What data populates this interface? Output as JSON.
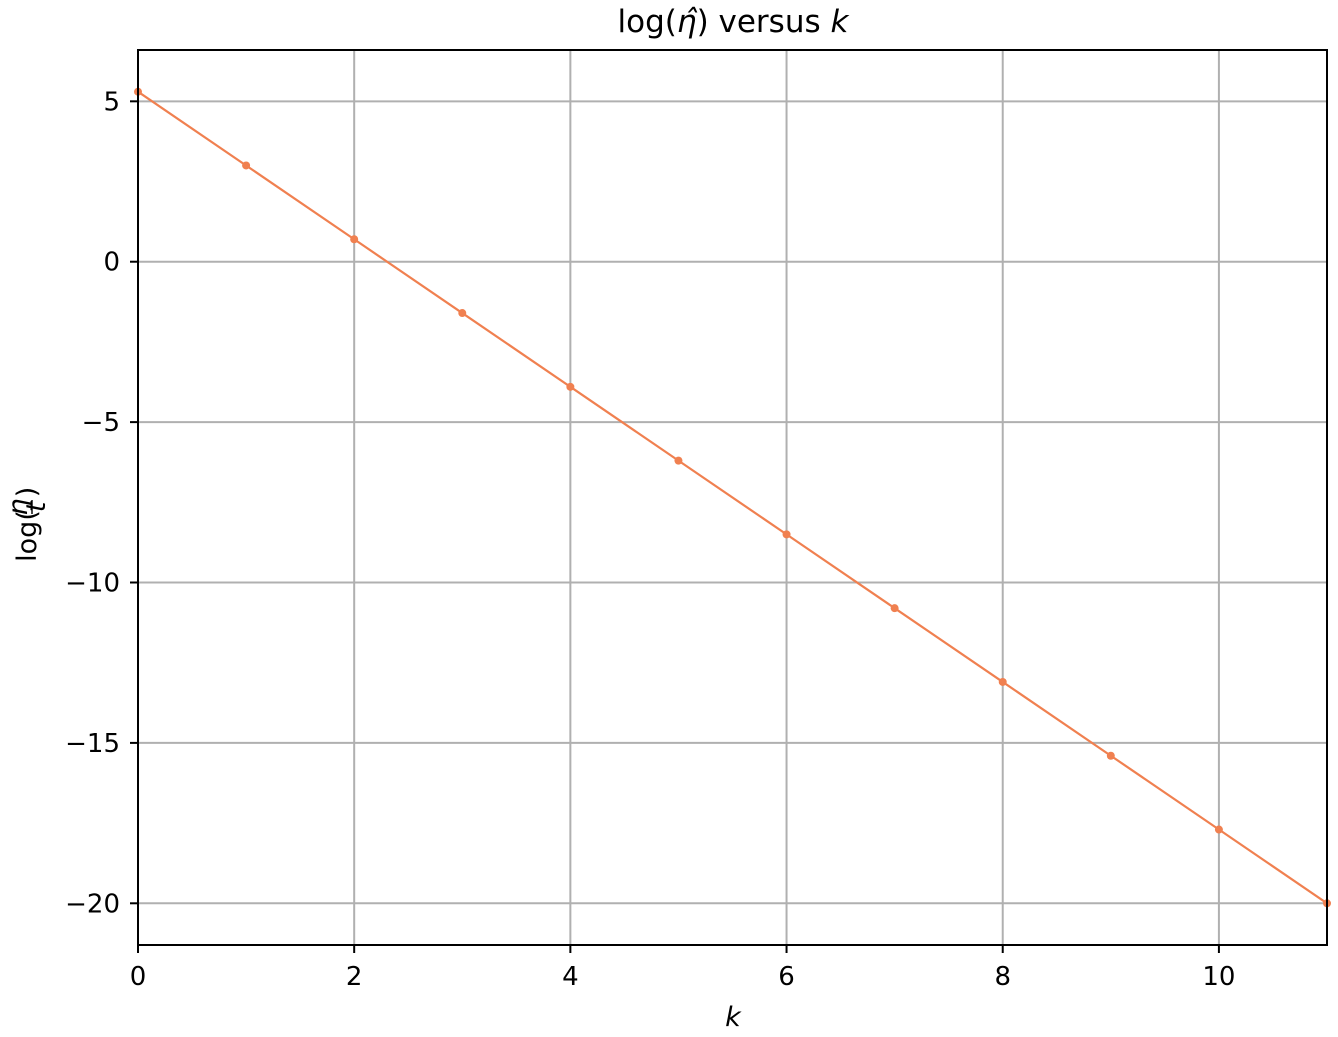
{
  "chart_data": {
    "type": "line",
    "title": "log(η̂) versus k",
    "title_prefix": "log(",
    "title_symbol": "η̂",
    "title_middle": ") versus ",
    "title_var": "k",
    "xlabel": "k",
    "ylabel_prefix": "log(",
    "ylabel_num": "η",
    "ylabel_den": "t",
    "ylabel_suffix": ")",
    "xlim": [
      0,
      11
    ],
    "ylim": [
      -21.3,
      6.6
    ],
    "x_ticks": [
      0,
      2,
      4,
      6,
      8,
      10
    ],
    "x_tick_labels": [
      "0",
      "2",
      "4",
      "6",
      "8",
      "10"
    ],
    "y_ticks": [
      5,
      0,
      -5,
      -10,
      -15,
      -20
    ],
    "y_tick_labels": [
      "5",
      "0",
      "−5",
      "−10",
      "−15",
      "−20"
    ],
    "grid": true,
    "line_color": "#f08050",
    "series": [
      {
        "x": [
          0,
          1,
          2,
          3,
          4,
          5,
          6,
          7,
          8,
          9,
          10,
          11
        ],
        "values": [
          5.3,
          3.0,
          0.7,
          -1.6,
          -3.9,
          -6.2,
          -8.5,
          -10.8,
          -13.1,
          -15.4,
          -17.7,
          -20.0
        ]
      }
    ]
  }
}
